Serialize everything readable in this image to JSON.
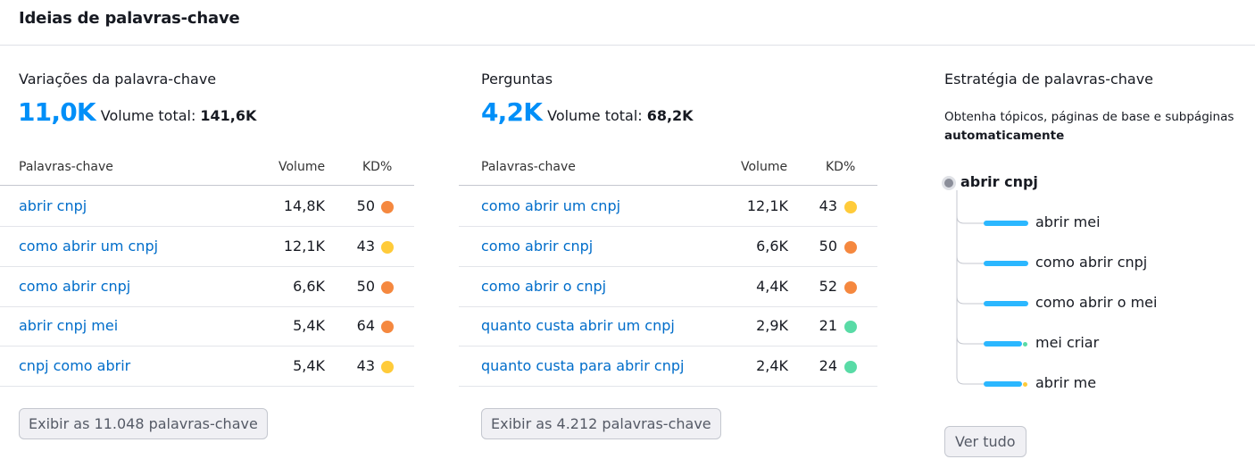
{
  "header": {
    "title": "Ideias de palavras-chave"
  },
  "variations": {
    "title": "Variações da palavra-chave",
    "count": "11,0K",
    "total_label": "Volume total:",
    "total_value": "141,6K",
    "columns": [
      "Palavras-chave",
      "Volume",
      "KD%"
    ],
    "rows": [
      {
        "keyword": "abrir cnpj",
        "volume": "14,8K",
        "kd": "50",
        "kd_color": "#f5883f"
      },
      {
        "keyword": "como abrir um cnpj",
        "volume": "12,1K",
        "kd": "43",
        "kd_color": "#ffcb3a"
      },
      {
        "keyword": "como abrir cnpj",
        "volume": "6,6K",
        "kd": "50",
        "kd_color": "#f5883f"
      },
      {
        "keyword": "abrir cnpj mei",
        "volume": "5,4K",
        "kd": "64",
        "kd_color": "#f5883f"
      },
      {
        "keyword": "cnpj como abrir",
        "volume": "5,4K",
        "kd": "43",
        "kd_color": "#ffcb3a"
      }
    ],
    "button": "Exibir as 11.048 palavras-chave"
  },
  "questions": {
    "title": "Perguntas",
    "count": "4,2K",
    "total_label": "Volume total:",
    "total_value": "68,2K",
    "columns": [
      "Palavras-chave",
      "Volume",
      "KD%"
    ],
    "rows": [
      {
        "keyword": "como abrir um cnpj",
        "volume": "12,1K",
        "kd": "43",
        "kd_color": "#ffcb3a"
      },
      {
        "keyword": "como abrir cnpj",
        "volume": "6,6K",
        "kd": "50",
        "kd_color": "#f5883f"
      },
      {
        "keyword": "como abrir o cnpj",
        "volume": "4,4K",
        "kd": "52",
        "kd_color": "#f5883f"
      },
      {
        "keyword": "quanto custa abrir um cnpj",
        "volume": "2,9K",
        "kd": "21",
        "kd_color": "#59dba6"
      },
      {
        "keyword": "quanto custa para abrir cnpj",
        "volume": "2,4K",
        "kd": "24",
        "kd_color": "#59dba6"
      }
    ],
    "button": "Exibir as 4.212 palavras-chave"
  },
  "strategy": {
    "title": "Estratégia de palavras-chave",
    "description": "Obtenha tópicos, páginas de base e subpáginas",
    "description_bold": "automaticamente",
    "root": "abrir cnpj",
    "leaves": [
      {
        "label": "abrir mei",
        "fill": 1.0,
        "tip_color": "#2bb7ff"
      },
      {
        "label": "como abrir cnpj",
        "fill": 1.0,
        "tip_color": "#2bb7ff"
      },
      {
        "label": "como abrir o mei",
        "fill": 1.0,
        "tip_color": "#2bb7ff"
      },
      {
        "label": "mei criar",
        "fill": 0.86,
        "tip_color": "#59dba6"
      },
      {
        "label": "abrir me",
        "fill": 0.86,
        "tip_color": "#ffcb3a"
      }
    ],
    "button": "Ver tudo"
  }
}
